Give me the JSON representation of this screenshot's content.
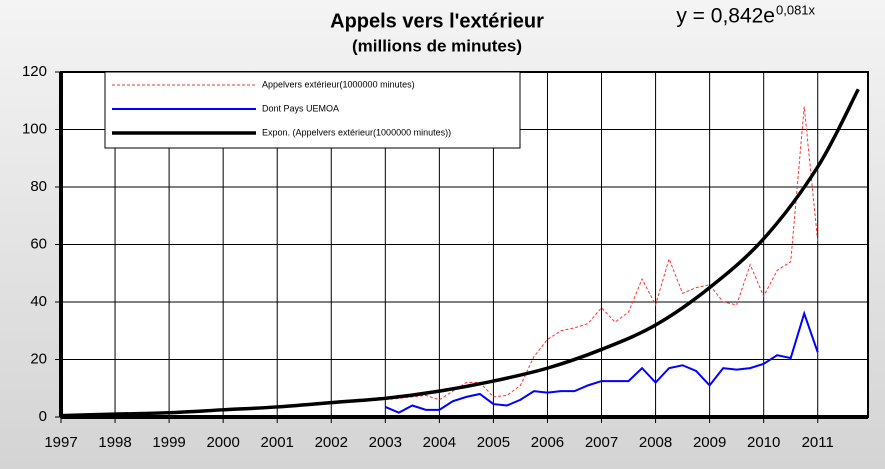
{
  "chart_data": {
    "type": "line",
    "title": "Appels vers l'extérieur",
    "subtitle": "(millions de minutes)",
    "equation": "y = 0,842e",
    "equation_exponent": "0,081x",
    "xlim": [
      1997,
      2011.93
    ],
    "ylim": [
      0,
      120
    ],
    "xticks": [
      1997,
      1998,
      1999,
      2000,
      2001,
      2002,
      2003,
      2004,
      2005,
      2006,
      2007,
      2008,
      2009,
      2010,
      2011
    ],
    "yticks": [
      0,
      20,
      40,
      60,
      80,
      100,
      120
    ],
    "grid": true,
    "legend": "top-left",
    "series": [
      {
        "name": "Appelvers extérieur(1000000 minutes)",
        "color": "#ff3333",
        "style": "dashed",
        "x": [
          2003,
          2003.25,
          2003.5,
          2003.75,
          2004,
          2004.25,
          2004.5,
          2004.75,
          2005,
          2005.25,
          2005.5,
          2005.75,
          2006,
          2006.25,
          2006.5,
          2006.75,
          2007,
          2007.25,
          2007.5,
          2007.75,
          2008,
          2008.25,
          2008.5,
          2008.75,
          2009,
          2009.25,
          2009.5,
          2009.75,
          2010,
          2010.25,
          2010.5,
          2010.75,
          2011
        ],
        "values": [
          6,
          6.5,
          7,
          7.5,
          6,
          9,
          12,
          12,
          7,
          7.5,
          11,
          21,
          27,
          30,
          31,
          32.5,
          38,
          33,
          36.5,
          48,
          39,
          55,
          43,
          45,
          46,
          40,
          39,
          53,
          42,
          51,
          54,
          108,
          61
        ]
      },
      {
        "name": "Dont Pays UEMOA",
        "color": "#0000ff",
        "style": "solid",
        "x": [
          2003,
          2003.25,
          2003.5,
          2003.75,
          2004,
          2004.25,
          2004.5,
          2004.75,
          2005,
          2005.25,
          2005.5,
          2005.75,
          2006,
          2006.25,
          2006.5,
          2006.75,
          2007,
          2007.25,
          2007.5,
          2007.75,
          2008,
          2008.25,
          2008.5,
          2008.75,
          2009,
          2009.25,
          2009.5,
          2009.75,
          2010,
          2010.25,
          2010.5,
          2010.75,
          2011
        ],
        "values": [
          3.5,
          1.5,
          4,
          2.5,
          2.5,
          5.5,
          7,
          8,
          4.5,
          4,
          6,
          9,
          8.5,
          9,
          9,
          11,
          12.5,
          12.5,
          12.5,
          17,
          12,
          17,
          18,
          16,
          11,
          17,
          16.5,
          17,
          18.5,
          21.5,
          20.5,
          36,
          22.5
        ]
      },
      {
        "name": "Expon. (Appelvers extérieur(1000000 minutes))",
        "color": "#000000",
        "style": "thick",
        "x": [
          1997,
          1998,
          1999,
          2000,
          2001,
          2002,
          2003,
          2004,
          2005,
          2006,
          2007,
          2008,
          2009,
          2010,
          2011,
          2011.75
        ],
        "values": [
          0.5,
          1,
          1.5,
          2.5,
          3.5,
          5,
          6.5,
          9,
          12.5,
          17,
          23.5,
          32,
          45,
          62,
          87,
          114
        ]
      }
    ]
  }
}
